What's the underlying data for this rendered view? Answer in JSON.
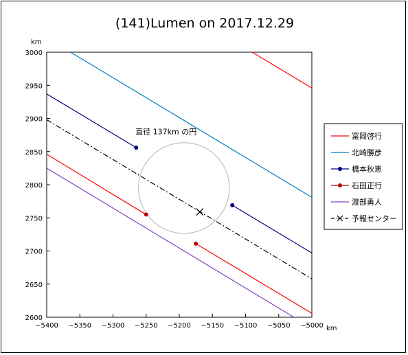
{
  "chart_data": {
    "type": "line",
    "title": "(141)Lumen on 2017.12.29",
    "xlabel": "km",
    "ylabel": "km",
    "xlim": [
      -5400,
      -5000
    ],
    "ylim": [
      2600,
      3000
    ],
    "x_ticks": [
      -5400,
      -5350,
      -5300,
      -5250,
      -5200,
      -5150,
      -5100,
      -5050,
      -5000
    ],
    "y_ticks": [
      2600,
      2650,
      2700,
      2750,
      2800,
      2850,
      2900,
      2950,
      3000
    ],
    "grid": false,
    "legend_position": "right",
    "annotation": {
      "text": "直径 137km の円",
      "x": -5220,
      "y": 2876
    },
    "circle": {
      "center": [
        -5193,
        2795
      ],
      "diameter_km": 137,
      "color": "#c0c0c0"
    },
    "series": [
      {
        "name": "冨岡啓行",
        "color": "#ff0000",
        "style": "solid",
        "marker": "none",
        "segments": [
          [
            [
              -5090,
              3000
            ],
            [
              -5000,
              2946
            ]
          ],
          [
            [
              -5400,
              2846
            ],
            [
              -5250,
              2755
            ]
          ],
          [
            [
              -5175,
              2711
            ],
            [
              -5000,
              2606
            ]
          ]
        ]
      },
      {
        "name": "北崎勝彦",
        "color": "#0080c0",
        "style": "solid",
        "marker": "none",
        "segments": [
          [
            [
              -5364,
              3000
            ],
            [
              -5000,
              2781
            ]
          ]
        ]
      },
      {
        "name": "橋本秋恵",
        "color": "#000080",
        "style": "solid",
        "marker": "circle",
        "segments": [
          [
            [
              -5400,
              2937
            ],
            [
              -5265,
              2856
            ]
          ],
          [
            [
              -5120,
              2769
            ],
            [
              -5000,
              2697
            ]
          ]
        ],
        "points": [
          [
            -5265,
            2856
          ],
          [
            -5120,
            2769
          ]
        ]
      },
      {
        "name": "石田正行",
        "color": "#c00000",
        "style": "none",
        "marker": "circle",
        "points": [
          [
            -5250,
            2755
          ],
          [
            -5175,
            2711
          ]
        ]
      },
      {
        "name": "渡部勇人",
        "color": "#8040c0",
        "style": "solid",
        "marker": "none",
        "segments": [
          [
            [
              -5400,
              2825
            ],
            [
              -5027,
              2600
            ]
          ]
        ]
      },
      {
        "name": "予報センター",
        "color": "#000000",
        "style": "dashdot",
        "marker": "x",
        "segments": [
          [
            [
              -5400,
              2898
            ],
            [
              -5000,
              2658
            ]
          ]
        ],
        "points": [
          [
            -5169,
            2759
          ]
        ]
      }
    ]
  }
}
